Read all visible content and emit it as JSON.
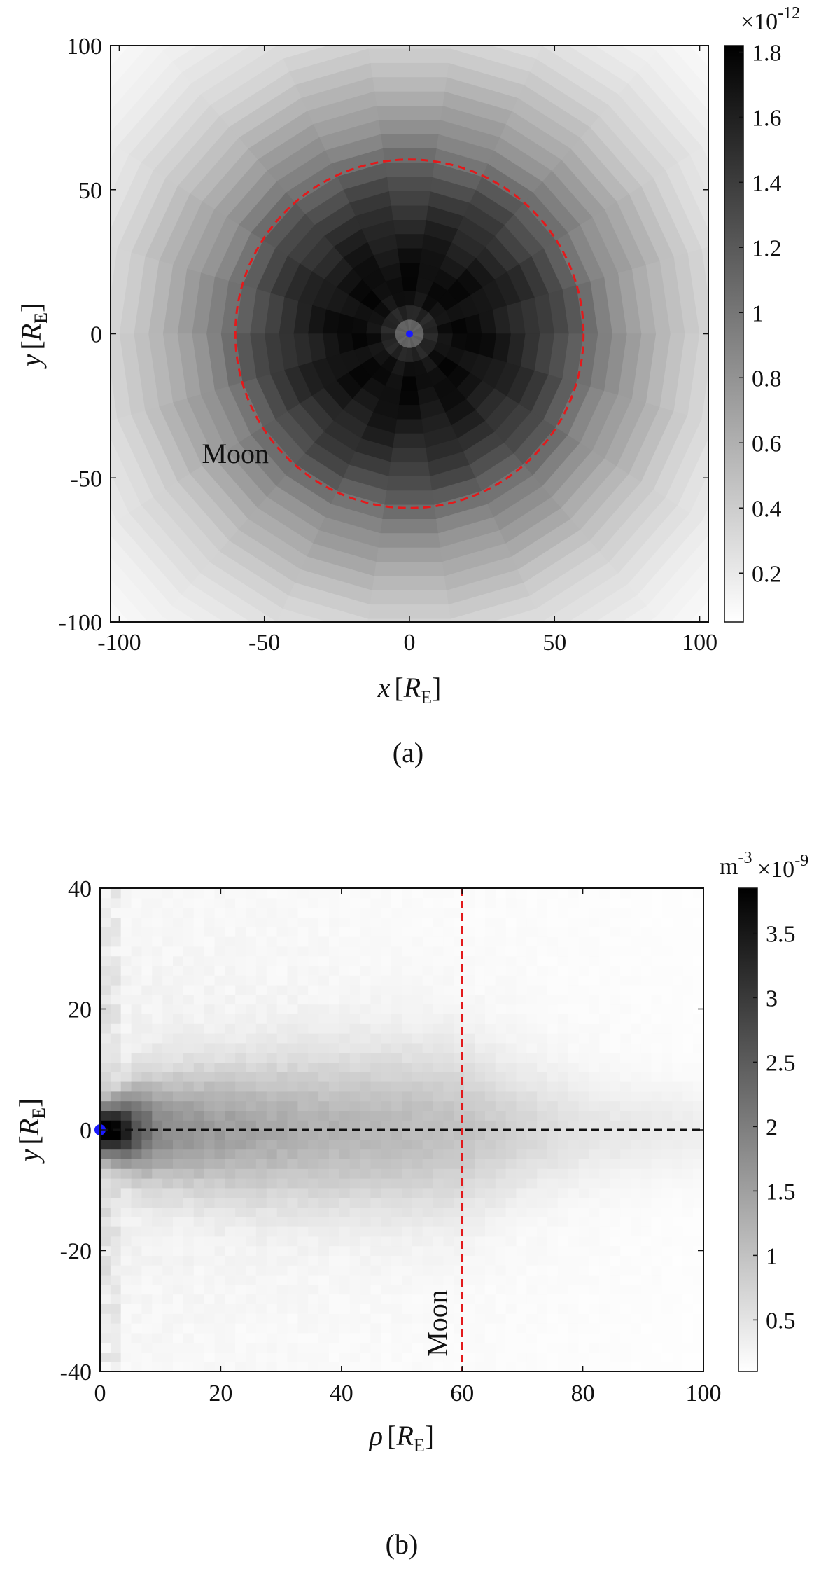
{
  "panels": [
    {
      "caption": "(a)",
      "chart_data": {
        "type": "heatmap",
        "description_kind": "radial density map",
        "x_var": "x",
        "y_var": "y",
        "unit_sub": "E",
        "unit_main": "R",
        "xlim": [
          -103,
          103
        ],
        "ylim": [
          -100,
          100
        ],
        "x_ticks": [
          -100,
          -50,
          0,
          50,
          100
        ],
        "y_ticks": [
          -100,
          -50,
          0,
          50,
          100
        ],
        "x_tick_labels": [
          "-100",
          "-50",
          "0",
          "50",
          "100"
        ],
        "y_tick_labels": [
          "-100",
          "-50",
          "0",
          "50",
          "100"
        ],
        "colorbar": {
          "min": 0.05,
          "max": 1.82,
          "ticks": [
            0.2,
            0.4,
            0.6,
            0.8,
            1,
            1.2,
            1.4,
            1.6,
            1.8
          ],
          "tick_labels": [
            "0.2",
            "0.4",
            "0.6",
            "0.8",
            "1",
            "1.2",
            "1.4",
            "1.6",
            "1.8"
          ],
          "multiplier_base": "×10",
          "multiplier_exp": "-12",
          "colormap": "white-to-black"
        },
        "radial_profile": {
          "r": [
            0,
            4,
            8,
            15,
            25,
            35,
            45,
            55,
            62,
            70,
            80,
            90,
            100,
            110,
            125,
            145
          ],
          "value": [
            0.95,
            1.25,
            1.6,
            1.75,
            1.72,
            1.6,
            1.45,
            1.25,
            1.05,
            0.85,
            0.68,
            0.52,
            0.38,
            0.28,
            0.17,
            0.08
          ]
        },
        "moon_orbit_radius": 60,
        "annotations": [
          {
            "text": "Moon",
            "x": -60,
            "y": -40
          }
        ],
        "earth_marker": {
          "x": 0,
          "y": 0,
          "color": "#1a1aff"
        },
        "orbit_color": "#e31a1c"
      }
    },
    {
      "caption": "(b)",
      "chart_data": {
        "type": "heatmap",
        "x_var": "ρ",
        "y_var": "y",
        "unit_sub": "E",
        "unit_main": "R",
        "xlim": [
          0,
          100
        ],
        "ylim": [
          -40,
          40
        ],
        "x_ticks": [
          0,
          20,
          40,
          60,
          80,
          100
        ],
        "y_ticks": [
          -40,
          -20,
          0,
          20,
          40
        ],
        "x_tick_labels": [
          "0",
          "20",
          "40",
          "60",
          "80",
          "100"
        ],
        "y_tick_labels": [
          "-40",
          "-20",
          "0",
          "20",
          "40"
        ],
        "colorbar": {
          "min": 0.1,
          "max": 3.85,
          "ticks": [
            0.5,
            1,
            1.5,
            2,
            2.5,
            3,
            3.5
          ],
          "tick_labels": [
            "0.5",
            "1",
            "1.5",
            "2",
            "2.5",
            "3",
            "3.5"
          ],
          "unit_base": "m",
          "unit_exp": "-3",
          "multiplier_base": "×10",
          "multiplier_exp": "-9",
          "colormap": "white-to-black"
        },
        "profile": {
          "rho": [
            0,
            2,
            4,
            6,
            10,
            20,
            30,
            40,
            50,
            60,
            70,
            80,
            90,
            100
          ],
          "peak": [
            3.8,
            3.6,
            3.2,
            2.4,
            1.6,
            1.3,
            1.1,
            1.0,
            0.95,
            0.85,
            0.6,
            0.4,
            0.35,
            0.3
          ],
          "width": [
            3,
            3,
            4,
            5,
            6,
            7,
            8,
            8.5,
            9,
            9,
            7,
            6,
            5,
            5
          ]
        },
        "background_level": 0.3,
        "moon_rho": 60,
        "annotations": [
          {
            "text": "Moon",
            "x": 57.5,
            "y": -32
          }
        ],
        "earth_marker": {
          "x": 0,
          "y": 0,
          "color": "#1a1aff"
        },
        "guide_colors": {
          "moon": "#e31a1c",
          "midplane": "#111111"
        }
      }
    }
  ]
}
